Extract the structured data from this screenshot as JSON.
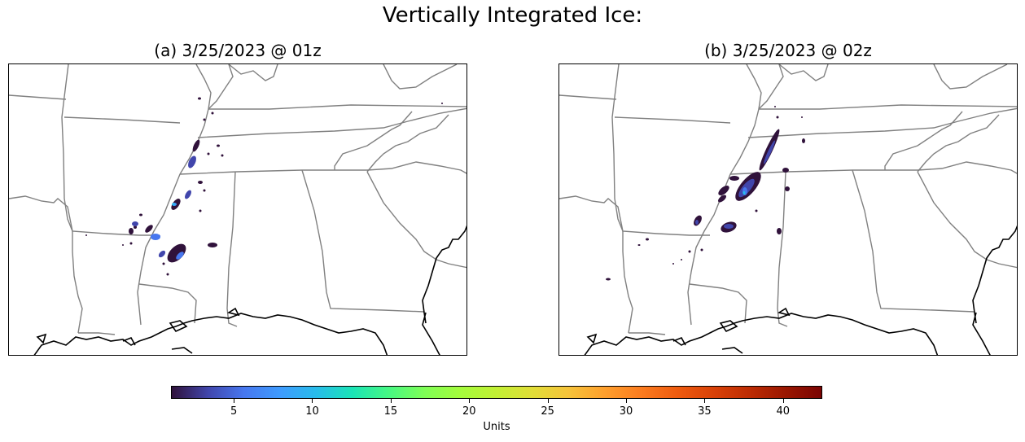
{
  "figure": {
    "title": "Vertically Integrated Ice:"
  },
  "panels": [
    {
      "title": "(a) 3/25/2023 @ 01z"
    },
    {
      "title": "(b) 3/25/2023 @ 02z"
    }
  ],
  "colorbar": {
    "label": "Units",
    "min": 1,
    "max": 42.5,
    "ticks": [
      5,
      10,
      15,
      20,
      25,
      30,
      35,
      40
    ],
    "colormap": "turbo"
  },
  "colors": {
    "state_border": "#808080",
    "coastline": "#000000"
  }
}
